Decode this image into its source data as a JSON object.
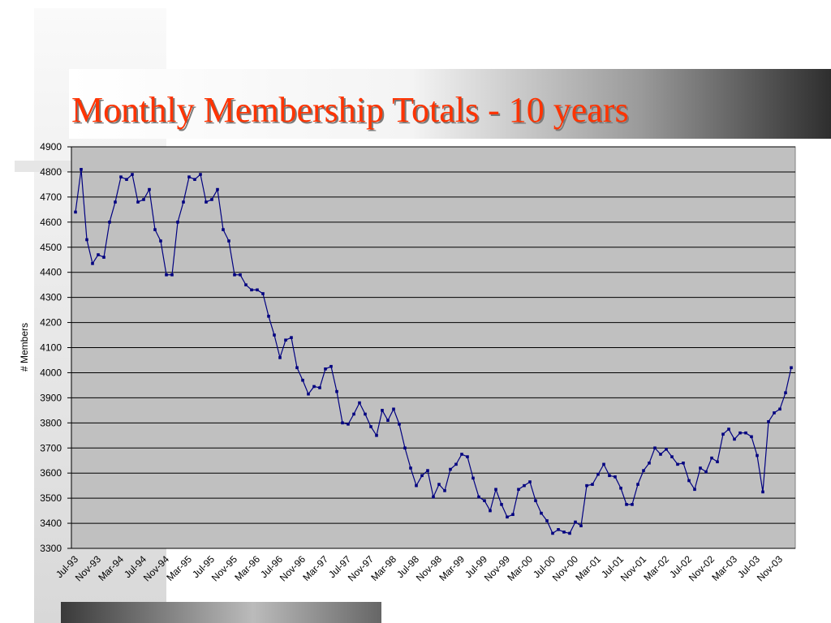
{
  "chart_data": {
    "type": "line",
    "title": "Monthly Membership Totals - 10 years",
    "y_label": "# Members",
    "categories": [
      "Jul-93",
      null,
      null,
      null,
      "Nov-93",
      null,
      null,
      null,
      "Mar-94",
      null,
      null,
      null,
      "Jul-94",
      null,
      null,
      null,
      "Nov-94",
      null,
      null,
      null,
      "Mar-95",
      null,
      null,
      null,
      "Jul-95",
      null,
      null,
      null,
      "Nov-95",
      null,
      null,
      null,
      "Mar-96",
      null,
      null,
      null,
      "Jul-96",
      null,
      null,
      null,
      "Nov-96",
      null,
      null,
      null,
      "Mar-97",
      null,
      null,
      null,
      "Jul-97",
      null,
      null,
      null,
      "Nov-97",
      null,
      null,
      null,
      "Mar-98",
      null,
      null,
      null,
      "Jul-98",
      null,
      null,
      null,
      "Nov-98",
      null,
      null,
      null,
      "Mar-99",
      null,
      null,
      null,
      "Jul-99",
      null,
      null,
      null,
      "Nov-99",
      null,
      null,
      null,
      "Mar-00",
      null,
      null,
      null,
      "Jul-00",
      null,
      null,
      null,
      "Nov-00",
      null,
      null,
      null,
      "Mar-01",
      null,
      null,
      null,
      "Jul-01",
      null,
      null,
      null,
      "Nov-01",
      null,
      null,
      null,
      "Mar-02",
      null,
      null,
      null,
      "Jul-02",
      null,
      null,
      null,
      "Nov-02",
      null,
      null,
      null,
      "Mar-03",
      null,
      null,
      null,
      "Jul-03",
      null,
      null,
      null,
      "Nov-03",
      null,
      null
    ],
    "values": [
      4640,
      4810,
      4530,
      4435,
      4470,
      4460,
      4600,
      4680,
      4780,
      4770,
      4790,
      4680,
      4690,
      4730,
      4570,
      4525,
      4390,
      4390,
      4600,
      4680,
      4780,
      4770,
      4790,
      4680,
      4690,
      4730,
      4570,
      4525,
      4390,
      4390,
      4350,
      4330,
      4330,
      4315,
      4225,
      4150,
      4060,
      4130,
      4140,
      4020,
      3970,
      3915,
      3945,
      3940,
      4015,
      4025,
      3925,
      3800,
      3795,
      3835,
      3880,
      3835,
      3785,
      3750,
      3850,
      3810,
      3855,
      3795,
      3700,
      3620,
      3550,
      3590,
      3610,
      3505,
      3555,
      3530,
      3615,
      3635,
      3675,
      3665,
      3580,
      3505,
      3490,
      3450,
      3535,
      3475,
      3425,
      3435,
      3535,
      3550,
      3565,
      3490,
      3440,
      3410,
      3360,
      3375,
      3365,
      3360,
      3405,
      3390,
      3550,
      3555,
      3595,
      3635,
      3590,
      3585,
      3540,
      3475,
      3475,
      3555,
      3610,
      3640,
      3700,
      3675,
      3695,
      3665,
      3635,
      3640,
      3570,
      3535,
      3620,
      3605,
      3660,
      3645,
      3755,
      3775,
      3735,
      3760,
      3760,
      3745,
      3670,
      3525,
      3805,
      3840,
      3855,
      3920,
      4020
    ],
    "color": "#000080",
    "ylim": [
      3300,
      4900
    ],
    "yticks": [
      3300,
      3400,
      3500,
      3600,
      3700,
      3800,
      3900,
      4000,
      4100,
      4200,
      4300,
      4400,
      4500,
      4600,
      4700,
      4800,
      4900
    ],
    "grid": true
  }
}
